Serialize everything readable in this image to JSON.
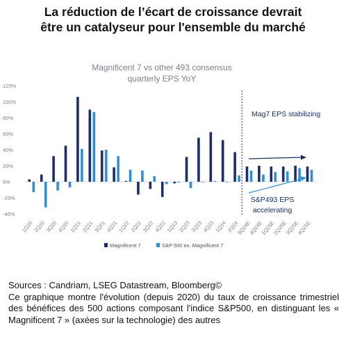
{
  "headline": {
    "line1": "La réduction de l’écart de croissance devrait",
    "line2": "être un catalyseur pour l'ensemble du marché"
  },
  "chart_data": {
    "type": "bar",
    "title": "Magnificent 7 vs other 493 consensus",
    "subtitle": "quarterly EPS YoY",
    "xlabel": "",
    "ylabel": "",
    "ylim": [
      -40,
      120
    ],
    "y_ticks": [
      "120%",
      "100%",
      "80%",
      "60%",
      "40%",
      "20%",
      "0%",
      "-20%",
      "-40%"
    ],
    "y_tick_values": [
      120,
      100,
      80,
      60,
      40,
      20,
      0,
      -20,
      -40
    ],
    "categories": [
      "1Q20",
      "2Q20",
      "3Q20",
      "4Q20",
      "1Q21",
      "2Q21",
      "3Q21",
      "4Q21",
      "1Q22",
      "2Q22",
      "3Q22",
      "4Q22",
      "1Q23",
      "2Q23",
      "3Q23",
      "4Q23",
      "1Q24",
      "2Q24",
      "3Q24E",
      "4Q24E",
      "1Q25E",
      "2Q25E",
      "3Q25E",
      "4Q25E"
    ],
    "series": [
      {
        "name": "Magnificent 7",
        "color": "#1b2d6b",
        "values": [
          3,
          9,
          32,
          45,
          106,
          90,
          39,
          18,
          1,
          -16,
          -9,
          -19,
          -2,
          31,
          55,
          62,
          52,
          37,
          19,
          20,
          19,
          19,
          20,
          19
        ]
      },
      {
        "name": "S&P 500 ex. Magnificent 7",
        "color": "#2e8fd4",
        "values": [
          -13,
          -32,
          -11,
          -7,
          41,
          87,
          40,
          32,
          15,
          14,
          7,
          -3,
          -1,
          -8,
          0,
          1,
          0,
          8,
          14,
          9,
          12,
          13,
          17,
          15
        ]
      }
    ],
    "annotations": {
      "mag7": "Mag7 EPS stabilizing",
      "sp493_line1": "S&P493 EPS",
      "sp493_line2": "accelerating"
    },
    "forecast_divider_after": "2Q24",
    "grid": false,
    "legend_position": "bottom",
    "colors": {
      "title_text": "#7a7f8c",
      "axis_text": "#7a7f8c",
      "annotation_text": "#1b2d6b",
      "accent_arrow": "#2e8fd4",
      "dark_arrow": "#1b2d6b",
      "divider": "#1b2d6b"
    }
  },
  "caption": {
    "sources": "Sources : Candriam, LSEG Datastream, Bloomberg©",
    "description": "Ce graphique montre l'évolution (depuis 2020) du taux de croissance trimestriel des bénéfices des 500 actions composant l'indice S&P500, en distinguant les « Magnificent 7 » (axées sur la technologie) des autres"
  }
}
